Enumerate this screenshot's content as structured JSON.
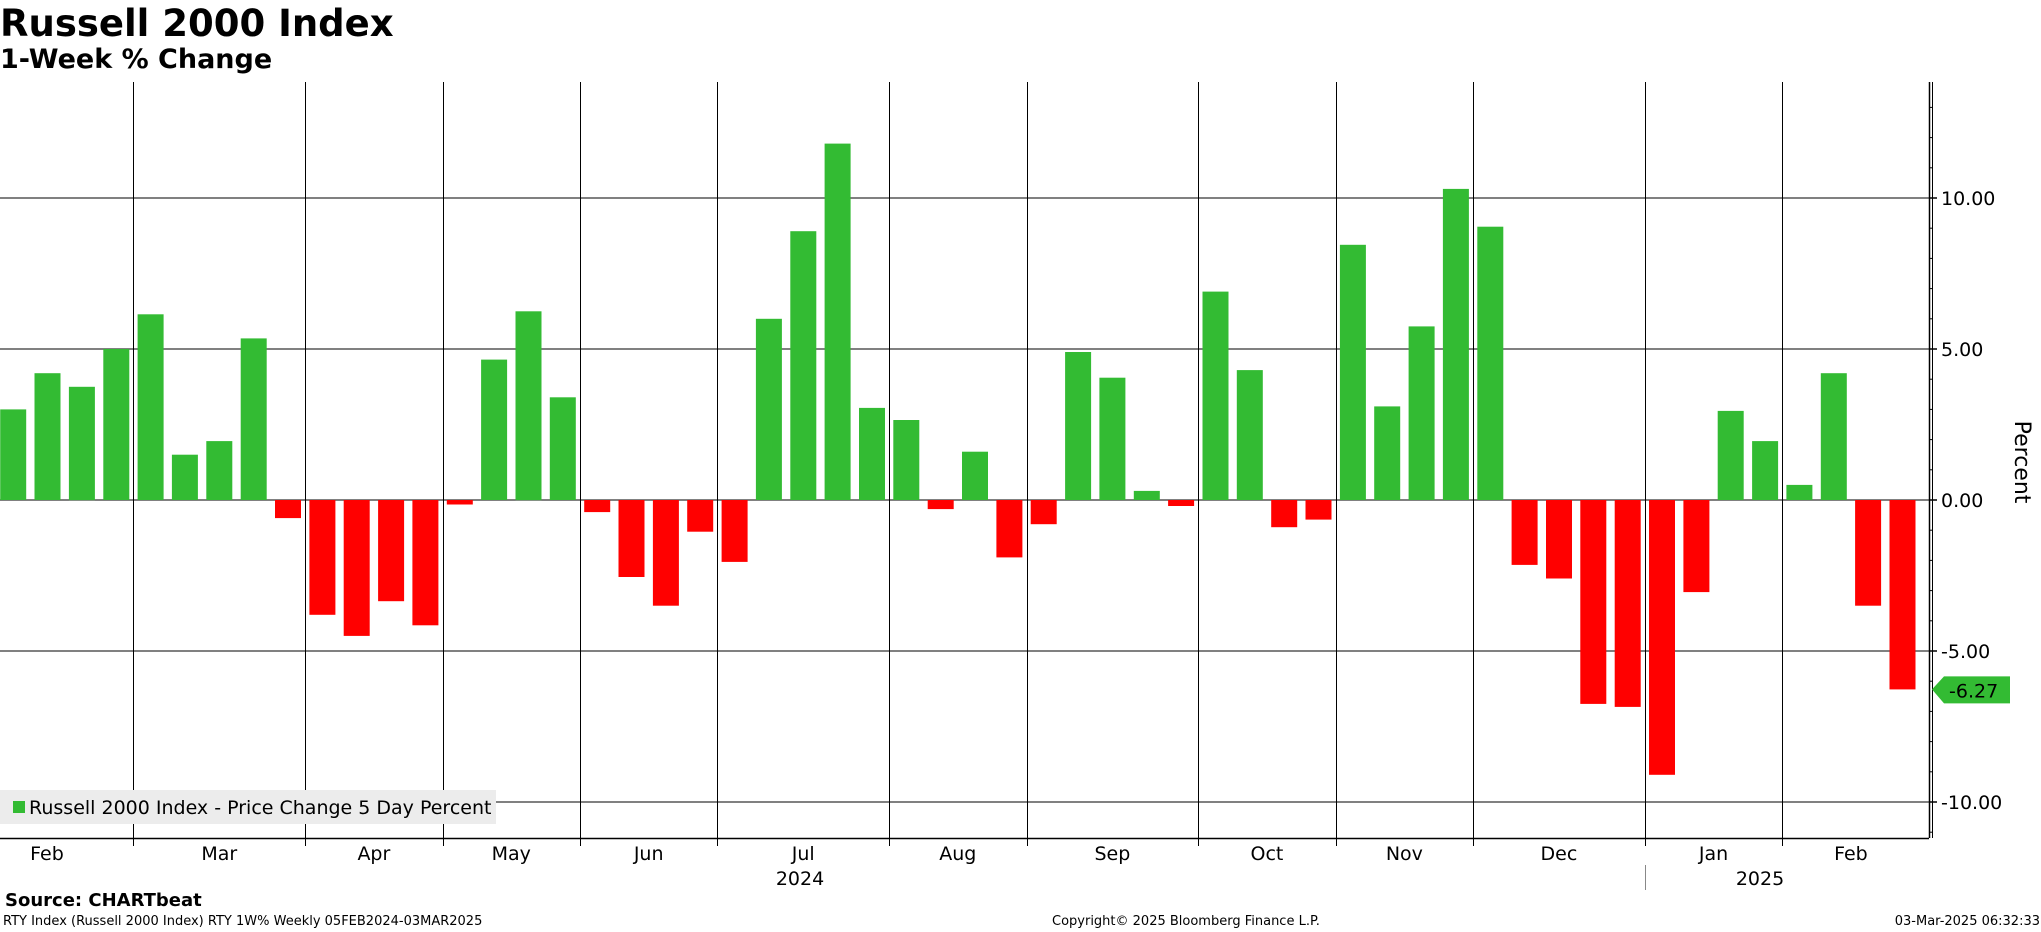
{
  "title": "Russell 2000 Index",
  "subtitle": "1-Week % Change",
  "source": "Source: CHARTbeat",
  "footer": {
    "left": "RTY Index (Russell 2000 Index) RTY 1W% Weekly 05FEB2024-03MAR2025",
    "center": "Copyright© 2025 Bloomberg Finance L.P.",
    "right": "03-Mar-2025 06:32:33"
  },
  "colors": {
    "positive": "#33bb33",
    "negative": "#ff0000",
    "last_label_bg": "#33bb33"
  },
  "chart_data": {
    "type": "bar",
    "title": "Russell 2000 Index",
    "subtitle": "1-Week % Change",
    "ylabel": "Percent",
    "ylim": [
      -11.5,
      13.5
    ],
    "yticks": [
      10,
      5,
      0,
      -5,
      -10
    ],
    "ytick_labels": [
      "10.00",
      "5.00",
      "0.00",
      "-5.00",
      "-10.00"
    ],
    "grid": true,
    "legend": {
      "label": "Russell 2000 Index - Price Change 5 Day Percent",
      "position": "bottom-left"
    },
    "last_value_label": "-6.27",
    "month_labels": [
      "Feb",
      "Mar",
      "Apr",
      "May",
      "Jun",
      "Jul",
      "Aug",
      "Sep",
      "Oct",
      "Nov",
      "Dec",
      "Jan",
      "Feb"
    ],
    "year_labels": [
      "2024",
      "2025"
    ],
    "series": [
      {
        "name": "Russell 2000 Index - Price Change 5 Day Percent",
        "x": [
          "2024-02-05",
          "2024-02-12",
          "2024-02-19",
          "2024-02-26",
          "2024-03-04",
          "2024-03-11",
          "2024-03-18",
          "2024-03-25",
          "2024-04-01",
          "2024-04-08",
          "2024-04-15",
          "2024-04-22",
          "2024-04-29",
          "2024-05-06",
          "2024-05-13",
          "2024-05-20",
          "2024-05-27",
          "2024-06-03",
          "2024-06-10",
          "2024-06-17",
          "2024-06-24",
          "2024-07-01",
          "2024-07-08",
          "2024-07-15",
          "2024-07-22",
          "2024-07-29",
          "2024-08-05",
          "2024-08-12",
          "2024-08-19",
          "2024-08-26",
          "2024-09-02",
          "2024-09-09",
          "2024-09-16",
          "2024-09-23",
          "2024-09-30",
          "2024-10-07",
          "2024-10-14",
          "2024-10-21",
          "2024-10-28",
          "2024-11-04",
          "2024-11-11",
          "2024-11-18",
          "2024-11-25",
          "2024-12-02",
          "2024-12-09",
          "2024-12-16",
          "2024-12-23",
          "2024-12-30",
          "2025-01-06",
          "2025-01-13",
          "2025-01-20",
          "2025-01-27",
          "2025-02-03",
          "2025-02-10",
          "2025-02-17",
          "2025-02-24"
        ],
        "values": [
          3.0,
          4.2,
          3.75,
          5.0,
          6.15,
          1.5,
          1.95,
          5.35,
          -0.6,
          -3.8,
          -4.5,
          -3.35,
          -4.15,
          -0.15,
          4.65,
          6.25,
          3.4,
          -0.4,
          -2.55,
          -3.5,
          -1.05,
          -2.05,
          6.0,
          8.9,
          11.8,
          3.05,
          2.65,
          -0.3,
          1.6,
          -1.9,
          -0.8,
          4.9,
          4.05,
          0.3,
          -0.2,
          6.9,
          4.3,
          -0.9,
          -0.65,
          8.45,
          3.1,
          5.75,
          10.3,
          9.05,
          -2.15,
          -2.6,
          -6.75,
          -6.85,
          -9.1,
          -3.05,
          2.95,
          1.95,
          0.5,
          4.2,
          -3.5,
          -6.27
        ]
      }
    ]
  }
}
